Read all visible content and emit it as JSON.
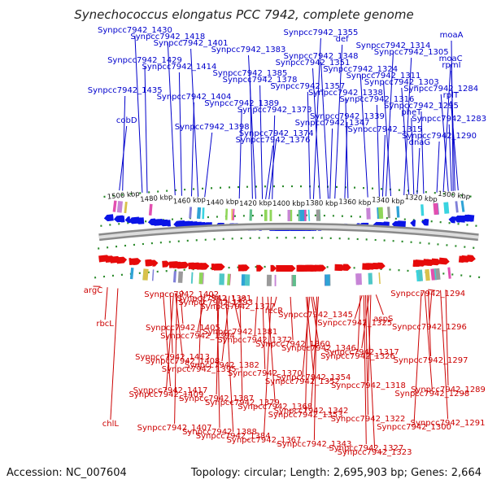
{
  "title": "Synechococcus elongatus PCC 7942, complete genome",
  "accession": "Accession: NC_007604",
  "summary": "Topology: circular; Length: 2,695,903 bp; Genes: 2,664",
  "colors": {
    "forward_label": "#0000cc",
    "reverse_label": "#cc0000",
    "forward_gene": "#0a14e6",
    "reverse_gene": "#e60a0a",
    "backbone_dots": "#2a8a2a"
  },
  "scale": {
    "start_kbp": 1290,
    "end_kbp": 1510,
    "ticks": [
      {
        "kbp": 1500,
        "label": "1500 kbp"
      },
      {
        "kbp": 1480,
        "label": "1480 kbp"
      },
      {
        "kbp": 1460,
        "label": "1460 kbp"
      },
      {
        "kbp": 1440,
        "label": "1440 kbp"
      },
      {
        "kbp": 1420,
        "label": "1420 kbp"
      },
      {
        "kbp": 1400,
        "label": "1400 kbp"
      },
      {
        "kbp": 1380,
        "label": "1380 kbp"
      },
      {
        "kbp": 1360,
        "label": "1360 kbp"
      },
      {
        "kbp": 1340,
        "label": "1340 kbp"
      },
      {
        "kbp": 1320,
        "label": "1320 kbp"
      },
      {
        "kbp": 1300,
        "label": "1300 kbp"
      }
    ]
  },
  "forward_labels": [
    {
      "text": "Synpcc7942_1430",
      "kbp": 1489
    },
    {
      "text": "Synpcc7942_1429",
      "kbp": 1486
    },
    {
      "text": "Synpcc7942_1435",
      "kbp": 1501
    },
    {
      "text": "cobD",
      "kbp": 1503
    },
    {
      "text": "Synpcc7942_1418",
      "kbp": 1469
    },
    {
      "text": "Synpcc7942_1414",
      "kbp": 1465
    },
    {
      "text": "Synpcc7942_1404",
      "kbp": 1459
    },
    {
      "text": "Synpcc7942_1398",
      "kbp": 1451
    },
    {
      "text": "Synpcc7942_1401",
      "kbp": 1455
    },
    {
      "text": "Synpcc7942_1385",
      "kbp": 1422
    },
    {
      "text": "Synpcc7942_1389",
      "kbp": 1430
    },
    {
      "text": "Synpcc7942_1374",
      "kbp": 1412
    },
    {
      "text": "Synpcc7942_1383",
      "kbp": 1420
    },
    {
      "text": "Synpcc7942_1378",
      "kbp": 1416
    },
    {
      "text": "Synpcc7942_1373",
      "kbp": 1410
    },
    {
      "text": "Synpcc7942_1376",
      "kbp": 1414
    },
    {
      "text": "Synpcc7942_1348",
      "kbp": 1376
    },
    {
      "text": "Synpcc7942_1357",
      "kbp": 1387
    },
    {
      "text": "Synpcc7942_1339",
      "kbp": 1366
    },
    {
      "text": "Synpcc7942_1355",
      "kbp": 1385
    },
    {
      "text": "Synpcc7942_1351",
      "kbp": 1381
    },
    {
      "text": "Synpcc7942_1338",
      "kbp": 1364
    },
    {
      "text": "Synpcc7942_1347",
      "kbp": 1375
    },
    {
      "text": "def",
      "kbp": 1372
    },
    {
      "text": "Synpcc7942_1324",
      "kbp": 1352
    },
    {
      "text": "Synpcc7942_1316",
      "kbp": 1345
    },
    {
      "text": "Synpcc7942_1315",
      "kbp": 1343
    },
    {
      "text": "Synpcc7942_1314",
      "kbp": 1341
    },
    {
      "text": "Synpcc7942_1311",
      "kbp": 1338
    },
    {
      "text": "Synpcc7942_1295",
      "kbp": 1318
    },
    {
      "text": "Synpcc7942_1290",
      "kbp": 1310
    },
    {
      "text": "Synpcc7942_1305",
      "kbp": 1330
    },
    {
      "text": "Synpcc7942_1303",
      "kbp": 1327
    },
    {
      "text": "pheT",
      "kbp": 1324
    },
    {
      "text": "dnaG",
      "kbp": 1322
    },
    {
      "text": "moaC",
      "kbp": 1306
    },
    {
      "text": "Synpcc7942_1284",
      "kbp": 1303
    },
    {
      "text": "Synpcc7942_1283",
      "kbp": 1301
    },
    {
      "text": "moaA",
      "kbp": 1300
    },
    {
      "text": "rpmI",
      "kbp": 1299
    },
    {
      "text": "rplT",
      "kbp": 1297
    }
  ],
  "reverse_labels": [
    {
      "text": "argC",
      "kbp": 1508
    },
    {
      "text": "rbcL",
      "kbp": 1504
    },
    {
      "text": "Synpcc7942_1413",
      "kbp": 1468
    },
    {
      "text": "Synpcc7942_1417",
      "kbp": 1472
    },
    {
      "text": "chlL",
      "kbp": 1498
    },
    {
      "text": "Synpcc7942_1402",
      "kbp": 1460
    },
    {
      "text": "Synpcc7942_1405",
      "kbp": 1462
    },
    {
      "text": "Synpcc7942_1408",
      "kbp": 1465
    },
    {
      "text": "Synpcc7942_1409",
      "kbp": 1466
    },
    {
      "text": "Synpcc7942_1407",
      "kbp": 1464
    },
    {
      "text": "Synpcc7942_1391",
      "kbp": 1444
    },
    {
      "text": "Synpcc7942_1381",
      "kbp": 1432
    },
    {
      "text": "Synpcc7942_1382",
      "kbp": 1434
    },
    {
      "text": "Synpcc7942_1387",
      "kbp": 1440
    },
    {
      "text": "Synpcc7942_1388",
      "kbp": 1441
    },
    {
      "text": "Synpcc7942_1393",
      "kbp": 1446
    },
    {
      "text": "Synpcc7942_1394",
      "kbp": 1448
    },
    {
      "text": "Synpcc7942_1395",
      "kbp": 1450
    },
    {
      "text": "Synpcc7942_1379",
      "kbp": 1428
    },
    {
      "text": "Synpcc7942_1384",
      "kbp": 1436
    },
    {
      "text": "Synpcc7942_1377",
      "kbp": 1425
    },
    {
      "text": "Synpcc7942_1372",
      "kbp": 1418
    },
    {
      "text": "Synpcc7942_1370",
      "kbp": 1415
    },
    {
      "text": "Synpcc7942_1368",
      "kbp": 1412
    },
    {
      "text": "Synpcc7942_1367",
      "kbp": 1410
    },
    {
      "text": "recR",
      "kbp": 1407
    },
    {
      "text": "Synpcc7942_1360",
      "kbp": 1399
    },
    {
      "text": "Synpcc7942_1354",
      "kbp": 1390
    },
    {
      "text": "Synpcc7942_1342",
      "kbp": 1383
    },
    {
      "text": "Synpcc7942_1343",
      "kbp": 1384
    },
    {
      "text": "Synpcc7942_1345",
      "kbp": 1386
    },
    {
      "text": "Synpcc7942_1346",
      "kbp": 1387
    },
    {
      "text": "Synpcc7942_1352",
      "kbp": 1388
    },
    {
      "text": "Synpcc7942_1353",
      "kbp": 1389
    },
    {
      "text": "Synpcc7942_1327",
      "kbp": 1357
    },
    {
      "text": "aspS",
      "kbp": 1350
    },
    {
      "text": "Synpcc7942_1317",
      "kbp": 1354
    },
    {
      "text": "Synpcc7942_1318",
      "kbp": 1353
    },
    {
      "text": "Synpcc7942_1322",
      "kbp": 1356
    },
    {
      "text": "Synpcc7942_1323",
      "kbp": 1355
    },
    {
      "text": "Synpcc7942_1325",
      "kbp": 1358
    },
    {
      "text": "Synpcc7942_1326",
      "kbp": 1359
    },
    {
      "text": "Synpcc7942_1289",
      "kbp": 1310
    },
    {
      "text": "Synpcc7942_1291",
      "kbp": 1313
    },
    {
      "text": "Synpcc7942_1294",
      "kbp": 1316
    },
    {
      "text": "Synpcc7942_1296",
      "kbp": 1318
    },
    {
      "text": "Synpcc7942_1297",
      "kbp": 1320
    },
    {
      "text": "Synpcc7942_1298",
      "kbp": 1322
    },
    {
      "text": "Synpcc7942_1300",
      "kbp": 1324
    }
  ]
}
